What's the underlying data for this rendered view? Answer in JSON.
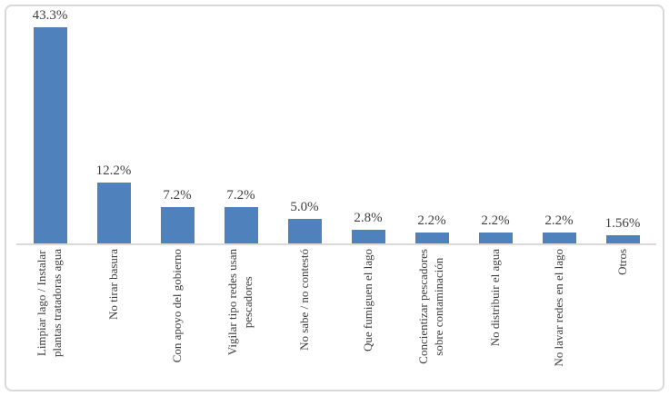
{
  "colors": {
    "bar": "#4f81bd",
    "axis": "#d9d9d9",
    "text": "#3f3f3f",
    "frame_border": "#d9d9d9",
    "background": "#ffffff"
  },
  "chart_data": {
    "type": "bar",
    "orientation": "vertical",
    "title": "",
    "xlabel": "",
    "ylabel": "",
    "grid": false,
    "legend": null,
    "data_labels": true,
    "ylim": [
      0,
      45
    ],
    "categories": [
      "Limpiar lago / Instalar\nplantas tratadoras agua",
      "No tirar basura",
      "Con apoyo del gobierno",
      "Vigilar tipo redes usan\npescadores",
      "No sabe / no contestó",
      "Que fumiguen el lago",
      "Concientizar pescadores\nsobre contaminación",
      "No distribuir el agua",
      "No lavar redes en el lago",
      "Otros"
    ],
    "values": [
      43.3,
      12.2,
      7.2,
      7.2,
      5.0,
      2.8,
      2.2,
      2.2,
      2.2,
      1.56
    ],
    "value_labels": [
      "43.3%",
      "12.2%",
      "7.2%",
      "7.2%",
      "5.0%",
      "2.8%",
      "2.2%",
      "2.2%",
      "2.2%",
      "1.56%"
    ]
  }
}
